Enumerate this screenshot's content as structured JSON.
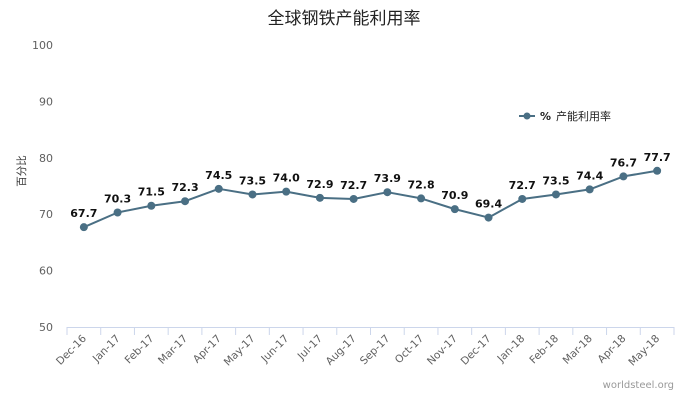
{
  "chart_data": {
    "type": "line",
    "title": "全球钢铁产能利用率",
    "ylabel": "百分比",
    "xlabel": "",
    "ylim": [
      50,
      100
    ],
    "yticks": [
      50,
      60,
      70,
      80,
      90,
      100
    ],
    "grid": false,
    "legend_position": "top-right",
    "categories": [
      "Dec-16",
      "Jan-17",
      "Feb-17",
      "Mar-17",
      "Apr-17",
      "May-17",
      "Jun-17",
      "Jul-17",
      "Aug-17",
      "Sep-17",
      "Oct-17",
      "Nov-17",
      "Dec-17",
      "Jan-18",
      "Feb-18",
      "Mar-18",
      "Apr-18",
      "May-18"
    ],
    "series": [
      {
        "name": "产能利用率",
        "legend_prefix": "%",
        "color": "#4a6f84",
        "values": [
          67.7,
          70.3,
          71.5,
          72.3,
          74.5,
          73.5,
          74.0,
          72.9,
          72.7,
          73.9,
          72.8,
          70.9,
          69.4,
          72.7,
          73.5,
          74.4,
          76.7,
          77.7
        ]
      }
    ],
    "credit": "worldsteel.org"
  }
}
